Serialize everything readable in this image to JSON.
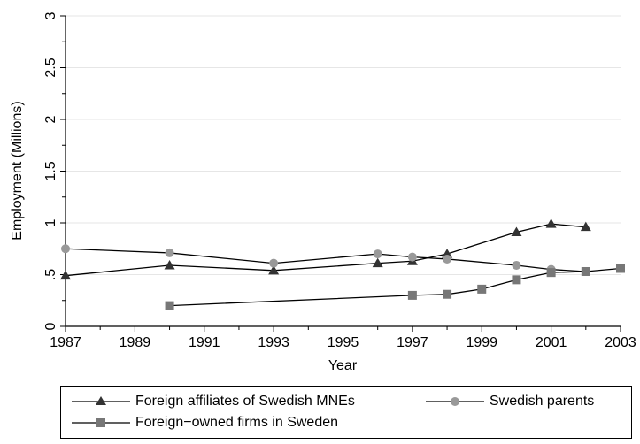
{
  "chart_data": {
    "type": "line",
    "title": "",
    "xlabel": "Year",
    "ylabel": "Employment (Millions)",
    "xlim": [
      1987,
      2003
    ],
    "ylim": [
      0,
      3
    ],
    "x_ticks": [
      "1987",
      "1989",
      "1991",
      "1993",
      "1995",
      "1997",
      "1999",
      "2001",
      "2003"
    ],
    "y_ticks": [
      "0",
      ".5",
      "1",
      "1.5",
      "2",
      "2.5",
      "3"
    ],
    "grid": "horizontal",
    "legend": "bottom",
    "series": [
      {
        "name": "Foreign affiliates of Swedish MNEs",
        "marker": "triangle",
        "color": "#333333",
        "x": [
          1987,
          1990,
          1993,
          1996,
          1997,
          1998,
          2000,
          2001,
          2002
        ],
        "y": [
          0.49,
          0.59,
          0.54,
          0.61,
          0.63,
          0.7,
          0.91,
          0.99,
          0.96
        ]
      },
      {
        "name": "Swedish parents",
        "marker": "circle",
        "color": "#999999",
        "x": [
          1987,
          1990,
          1993,
          1996,
          1997,
          1998,
          2000,
          2001,
          2002
        ],
        "y": [
          0.75,
          0.71,
          0.61,
          0.7,
          0.67,
          0.65,
          0.59,
          0.55,
          0.53
        ]
      },
      {
        "name": "Foreign−owned firms in Sweden",
        "marker": "square",
        "color": "#777777",
        "x": [
          1990,
          1997,
          1998,
          1999,
          2000,
          2001,
          2002,
          2003
        ],
        "y": [
          0.2,
          0.3,
          0.31,
          0.36,
          0.45,
          0.52,
          0.53,
          0.56
        ]
      }
    ]
  }
}
